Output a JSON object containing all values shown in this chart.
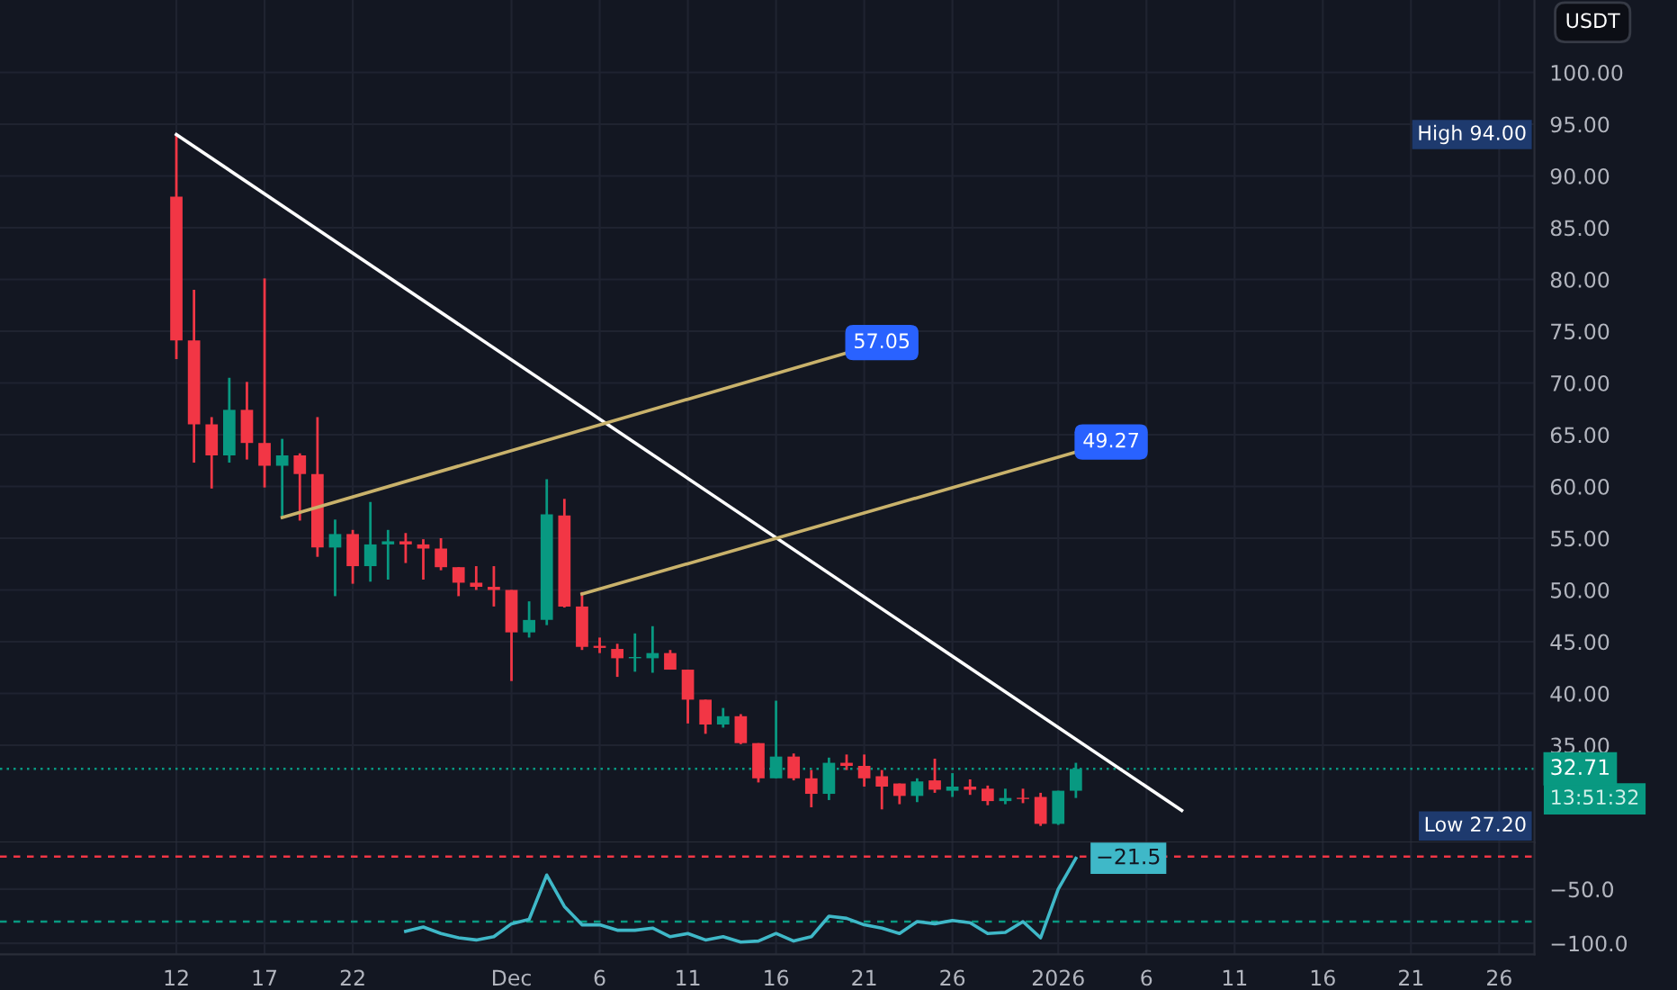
{
  "chart_data": [
    {
      "type": "candlestick",
      "x": [
        "2025-11-12",
        "2025-11-13",
        "2025-11-14",
        "2025-11-15",
        "2025-11-16",
        "2025-11-17",
        "2025-11-18",
        "2025-11-19",
        "2025-11-20",
        "2025-11-21",
        "2025-11-22",
        "2025-11-23",
        "2025-11-24",
        "2025-11-25",
        "2025-11-26",
        "2025-11-27",
        "2025-11-28",
        "2025-11-29",
        "2025-11-30",
        "2025-12-01",
        "2025-12-02",
        "2025-12-03",
        "2025-12-04",
        "2025-12-05",
        "2025-12-06",
        "2025-12-07",
        "2025-12-08",
        "2025-12-09",
        "2025-12-10",
        "2025-12-11",
        "2025-12-12",
        "2025-12-13",
        "2025-12-14",
        "2025-12-15",
        "2025-12-16",
        "2025-12-17",
        "2025-12-18",
        "2025-12-19",
        "2025-12-20",
        "2025-12-21",
        "2025-12-22",
        "2025-12-23",
        "2025-12-24",
        "2025-12-25",
        "2025-12-26",
        "2025-12-27",
        "2025-12-28",
        "2025-12-29",
        "2025-12-30",
        "2025-12-31",
        "2026-01-01",
        "2026-01-02"
      ],
      "ohlc": [
        [
          88.0,
          94.0,
          72.3,
          74.1
        ],
        [
          74.1,
          79.0,
          62.3,
          66.0
        ],
        [
          66.0,
          66.7,
          59.8,
          63.0
        ],
        [
          63.0,
          70.5,
          62.3,
          67.4
        ],
        [
          67.4,
          70.1,
          62.6,
          64.2
        ],
        [
          64.2,
          80.1,
          59.9,
          62.0
        ],
        [
          62.0,
          64.6,
          56.9,
          63.0
        ],
        [
          63.0,
          63.2,
          56.7,
          61.2
        ],
        [
          61.2,
          66.7,
          53.2,
          54.1
        ],
        [
          54.1,
          56.8,
          49.4,
          55.4
        ],
        [
          55.4,
          55.8,
          50.6,
          52.3
        ],
        [
          52.3,
          58.5,
          50.8,
          54.4
        ],
        [
          54.4,
          55.8,
          51.0,
          54.7
        ],
        [
          54.7,
          55.5,
          52.6,
          54.4
        ],
        [
          54.4,
          54.9,
          51.0,
          54.0
        ],
        [
          54.0,
          55.0,
          51.9,
          52.2
        ],
        [
          52.2,
          52.2,
          49.4,
          50.7
        ],
        [
          50.7,
          52.3,
          50.0,
          50.3
        ],
        [
          50.3,
          52.3,
          48.4,
          50.0
        ],
        [
          50.0,
          50.0,
          41.2,
          45.9
        ],
        [
          45.9,
          48.9,
          45.4,
          47.1
        ],
        [
          47.1,
          60.7,
          46.6,
          57.3
        ],
        [
          57.2,
          58.8,
          48.3,
          48.4
        ],
        [
          48.4,
          49.8,
          44.2,
          44.5
        ],
        [
          44.6,
          45.4,
          43.9,
          44.4
        ],
        [
          44.3,
          44.8,
          41.6,
          43.4
        ],
        [
          43.4,
          45.8,
          42.1,
          43.5
        ],
        [
          43.4,
          46.5,
          42.0,
          43.9
        ],
        [
          43.9,
          44.2,
          42.3,
          42.3
        ],
        [
          42.3,
          42.3,
          37.1,
          39.4
        ],
        [
          39.4,
          39.4,
          36.1,
          37.0
        ],
        [
          37.0,
          38.6,
          36.7,
          37.8
        ],
        [
          37.8,
          38.0,
          35.1,
          35.2
        ],
        [
          35.2,
          35.2,
          31.4,
          31.8
        ],
        [
          31.8,
          39.3,
          31.8,
          33.9
        ],
        [
          33.9,
          34.2,
          31.6,
          31.8
        ],
        [
          31.8,
          32.6,
          29.0,
          30.3
        ],
        [
          30.3,
          33.8,
          29.7,
          33.3
        ],
        [
          33.3,
          34.1,
          32.6,
          33.0
        ],
        [
          33.0,
          34.1,
          31.0,
          31.8
        ],
        [
          32.0,
          32.6,
          28.8,
          31.0
        ],
        [
          31.3,
          31.3,
          29.3,
          30.1
        ],
        [
          30.1,
          31.8,
          29.5,
          31.5
        ],
        [
          31.6,
          33.7,
          30.4,
          30.7
        ],
        [
          30.6,
          32.3,
          30.0,
          31.0
        ],
        [
          31.0,
          31.7,
          30.2,
          30.7
        ],
        [
          30.8,
          31.1,
          29.2,
          29.6
        ],
        [
          29.6,
          30.8,
          29.3,
          29.9
        ],
        [
          29.9,
          30.8,
          29.4,
          29.8
        ],
        [
          30.0,
          30.4,
          27.2,
          27.4
        ],
        [
          27.4,
          30.6,
          27.3,
          30.6
        ],
        [
          30.6,
          33.3,
          29.9,
          32.71
        ]
      ],
      "series": [
        {
          "type": "line",
          "x": [
            "2025-11-12",
            "2026-01-08"
          ],
          "values": [
            94.0,
            28.7
          ],
          "color": "#ffffff"
        },
        {
          "type": "line",
          "x": [
            "2025-11-18",
            "2025-12-22"
          ],
          "values": [
            57.0,
            73.9
          ],
          "color": "#c9b26b"
        },
        {
          "type": "line",
          "x": [
            "2025-12-05",
            "2026-01-04"
          ],
          "values": [
            49.6,
            64.3
          ],
          "color": "#c9b26b"
        }
      ],
      "xlim": [
        "2025-11-02",
        "2026-01-28"
      ],
      "xticks": [
        {
          "value": "2025-11-12",
          "label": null
        },
        {
          "value": "2025-11-17",
          "label": null
        },
        {
          "value": "2025-11-22",
          "label": null
        },
        {
          "value": "2025-12-01",
          "label": null
        },
        {
          "value": "2025-12-06",
          "label": null
        },
        {
          "value": "2025-12-11",
          "label": null
        },
        {
          "value": "2025-12-16",
          "label": null
        },
        {
          "value": "2025-12-21",
          "label": null
        },
        {
          "value": "2025-12-26",
          "label": null
        },
        {
          "value": "2026-01-01",
          "label": null
        },
        {
          "value": "2026-01-06",
          "label": null
        },
        {
          "value": "2026-01-11",
          "label": null
        },
        {
          "value": "2026-01-16",
          "label": null
        },
        {
          "value": "2026-01-21",
          "label": null
        },
        {
          "value": "2026-01-26",
          "label": null
        }
      ],
      "ylim": [
        25.6,
        107.0
      ],
      "yticks": [
        {
          "value": 35,
          "label": "35.00"
        },
        {
          "value": 40,
          "label": "40.00"
        },
        {
          "value": 45,
          "label": "45.00"
        },
        {
          "value": 50,
          "label": "50.00"
        },
        {
          "value": 55,
          "label": "55.00"
        },
        {
          "value": 60,
          "label": "60.00"
        },
        {
          "value": 65,
          "label": "65.00"
        },
        {
          "value": 70,
          "label": "70.00"
        },
        {
          "value": 75,
          "label": "75.00"
        },
        {
          "value": 80,
          "label": "80.00"
        },
        {
          "value": 85,
          "label": "85.00"
        },
        {
          "value": 90,
          "label": "90.00"
        },
        {
          "value": 95,
          "label": "95.00"
        },
        {
          "value": 100,
          "label": "100.00"
        }
      ],
      "tick_labels": "y",
      "grid": true,
      "ref_lines": [
        {
          "axis": "y",
          "value": 32.71,
          "label": "32.71",
          "color": "#089981",
          "line_style": "dotted"
        }
      ],
      "annotations": [
        {
          "text": "57.05",
          "x": "2025-12-22",
          "y": 73.9
        },
        {
          "text": "49.27",
          "x": "2026-01-04",
          "y": 64.3
        },
        "High 94.00",
        "Low 27.20",
        "USDT",
        "13:51:32"
      ]
    },
    {
      "type": "line",
      "series": [
        {
          "color": "#3fb8c8",
          "x": [
            "2025-11-25",
            "2025-11-26",
            "2025-11-27",
            "2025-11-28",
            "2025-11-29",
            "2025-11-30",
            "2025-12-01",
            "2025-12-02",
            "2025-12-03",
            "2025-12-04",
            "2025-12-05",
            "2025-12-06",
            "2025-12-07",
            "2025-12-08",
            "2025-12-09",
            "2025-12-10",
            "2025-12-11",
            "2025-12-12",
            "2025-12-13",
            "2025-12-14",
            "2025-12-15",
            "2025-12-16",
            "2025-12-17",
            "2025-12-18",
            "2025-12-19",
            "2025-12-20",
            "2025-12-21",
            "2025-12-22",
            "2025-12-23",
            "2025-12-24",
            "2025-12-25",
            "2025-12-26",
            "2025-12-27",
            "2025-12-28",
            "2025-12-29",
            "2025-12-30",
            "2025-12-31",
            "2026-01-01",
            "2026-01-02"
          ],
          "values": [
            -89,
            -85,
            -91,
            -95,
            -97,
            -94,
            -82,
            -78,
            -37,
            -66,
            -83,
            -83,
            -88,
            -88,
            -86,
            -94,
            -91,
            -97,
            -94,
            -99,
            -98,
            -91,
            -98,
            -94,
            -75,
            -77,
            -83,
            -86,
            -91,
            -80,
            -82,
            -79,
            -81,
            -91,
            -90,
            -80,
            -95,
            -50,
            -21.5
          ],
          "value_labels": [
            null,
            null,
            null,
            null,
            null,
            null,
            null,
            null,
            null,
            null,
            null,
            null,
            null,
            null,
            null,
            null,
            null,
            null,
            null,
            null,
            null,
            null,
            null,
            null,
            null,
            null,
            null,
            null,
            null,
            null,
            null,
            null,
            null,
            null,
            null,
            null,
            null,
            null,
            "−21.5"
          ]
        }
      ],
      "xlim": [
        "2025-11-02",
        "2026-01-28"
      ],
      "xticks": [
        {
          "value": "2025-11-12",
          "label": "12"
        },
        {
          "value": "2025-11-17",
          "label": "17"
        },
        {
          "value": "2025-11-22",
          "label": "22"
        },
        {
          "value": "2025-12-01",
          "label": "Dec"
        },
        {
          "value": "2025-12-06",
          "label": "6"
        },
        {
          "value": "2025-12-11",
          "label": "11"
        },
        {
          "value": "2025-12-16",
          "label": "16"
        },
        {
          "value": "2025-12-21",
          "label": "21"
        },
        {
          "value": "2025-12-26",
          "label": "26"
        },
        {
          "value": "2026-01-01",
          "label": "2026"
        },
        {
          "value": "2026-01-06",
          "label": "6"
        },
        {
          "value": "2026-01-11",
          "label": "11"
        },
        {
          "value": "2026-01-16",
          "label": "16"
        },
        {
          "value": "2026-01-21",
          "label": "21"
        },
        {
          "value": "2026-01-26",
          "label": "26"
        }
      ],
      "ylim": [
        -110.3,
        -6.9
      ],
      "yticks": [
        {
          "value": -50,
          "label": "−50.0"
        },
        {
          "value": -100,
          "label": "−100.0"
        }
      ],
      "grid": true,
      "ref_lines": [
        {
          "axis": "y",
          "value": -20,
          "color": "#f23645",
          "line_style": "dashed"
        },
        {
          "axis": "y",
          "value": -80,
          "color": "#089981",
          "line_style": "dashed"
        }
      ]
    }
  ]
}
